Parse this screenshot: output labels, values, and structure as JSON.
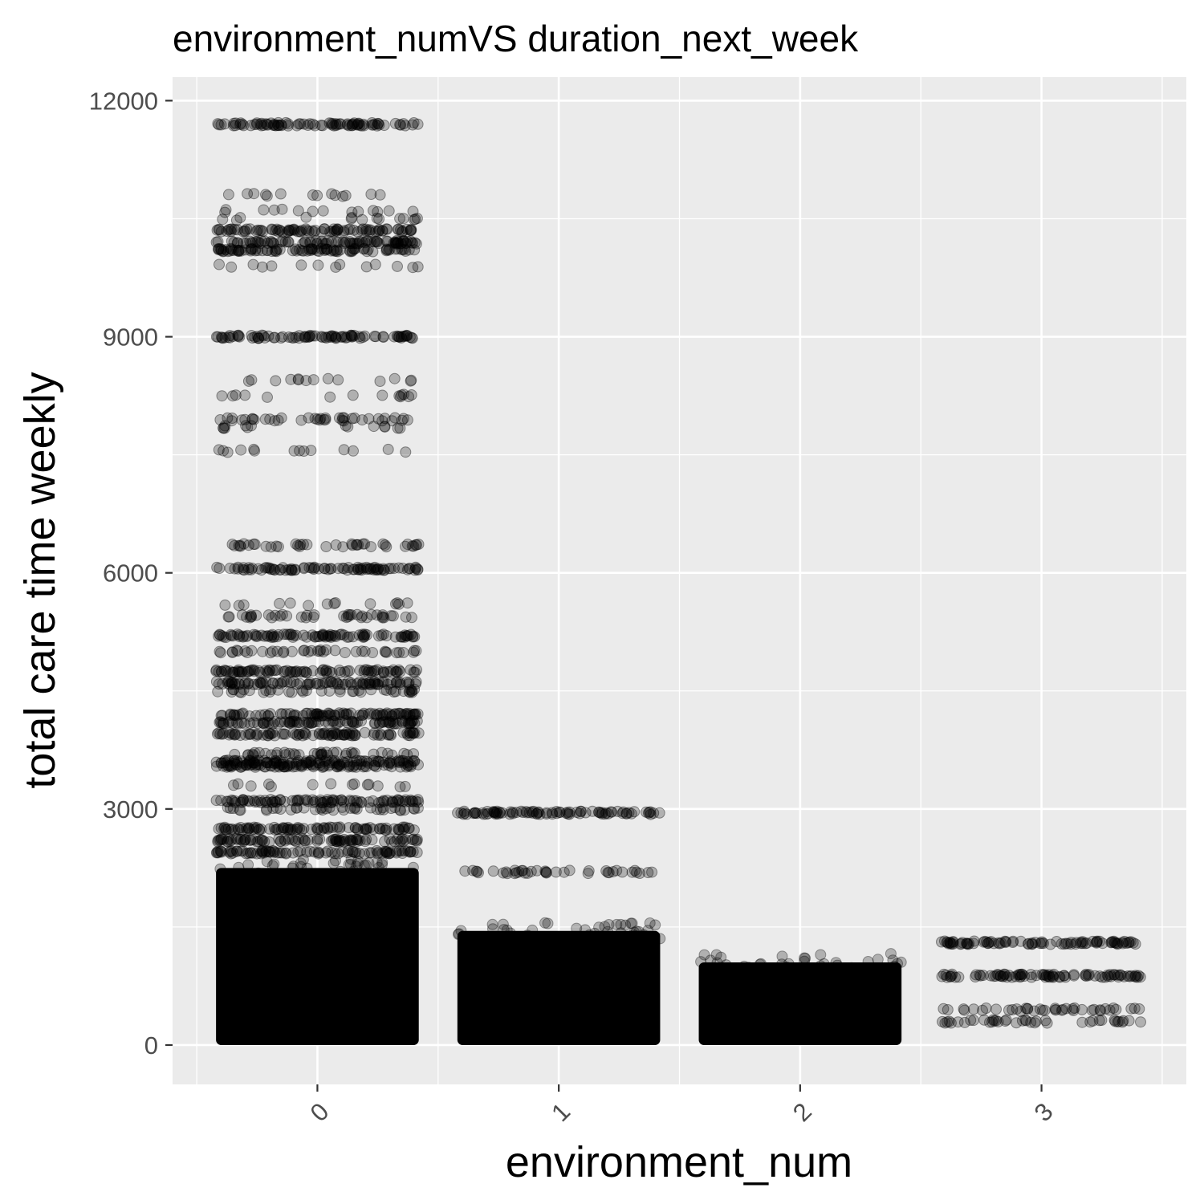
{
  "chart_data": {
    "type": "scatter",
    "title": "environment_numVS duration_next_week",
    "xlabel": "environment_num",
    "ylabel": "total care time weekly",
    "categories": [
      "0",
      "1",
      "2",
      "3"
    ],
    "x_tick_labels": [
      "0",
      "1",
      "2",
      "3"
    ],
    "y_tick_labels": [
      "0",
      "3000",
      "6000",
      "9000",
      "12000"
    ],
    "y_ticks": [
      0,
      3000,
      6000,
      9000,
      12000
    ],
    "ylim": [
      -500,
      12300
    ],
    "xlim": [
      -0.6,
      3.6
    ],
    "grid": true,
    "jitter_width": 0.42,
    "point_color": "#000000",
    "point_alpha": 0.25,
    "panel_background": "#ebebeb",
    "grid_color": "#ffffff",
    "groups": [
      {
        "x": "0",
        "dense_range": [
          0,
          2250
        ],
        "levels": [
          {
            "y": 11700,
            "density": "dense"
          },
          {
            "y": 10800,
            "density": "sparse"
          },
          {
            "y": 10600,
            "density": "sparse"
          },
          {
            "y": 10500,
            "density": "sparse"
          },
          {
            "y": 10350,
            "density": "dense"
          },
          {
            "y": 10200,
            "density": "dense"
          },
          {
            "y": 10100,
            "density": "dense"
          },
          {
            "y": 9900,
            "density": "sparse"
          },
          {
            "y": 9000,
            "density": "dense"
          },
          {
            "y": 8450,
            "density": "sparse"
          },
          {
            "y": 8250,
            "density": "sparse"
          },
          {
            "y": 7950,
            "density": "medium"
          },
          {
            "y": 7850,
            "density": "sparse"
          },
          {
            "y": 7550,
            "density": "sparse"
          },
          {
            "y": 6350,
            "density": "medium"
          },
          {
            "y": 6050,
            "density": "dense"
          },
          {
            "y": 5600,
            "density": "sparse"
          },
          {
            "y": 5450,
            "density": "medium"
          },
          {
            "y": 5200,
            "density": "dense"
          },
          {
            "y": 5000,
            "density": "medium"
          },
          {
            "y": 4750,
            "density": "dense"
          },
          {
            "y": 4600,
            "density": "dense"
          },
          {
            "y": 4500,
            "density": "medium"
          },
          {
            "y": 4200,
            "density": "dense"
          },
          {
            "y": 4100,
            "density": "dense"
          },
          {
            "y": 3950,
            "density": "dense"
          },
          {
            "y": 3700,
            "density": "medium"
          },
          {
            "y": 3600,
            "density": "dense"
          },
          {
            "y": 3550,
            "density": "dense"
          },
          {
            "y": 3300,
            "density": "sparse"
          },
          {
            "y": 3100,
            "density": "dense"
          },
          {
            "y": 3000,
            "density": "medium"
          },
          {
            "y": 2750,
            "density": "dense"
          },
          {
            "y": 2600,
            "density": "dense"
          },
          {
            "y": 2450,
            "density": "dense"
          }
        ]
      },
      {
        "x": "1",
        "dense_range": [
          0,
          1450
        ],
        "levels": [
          {
            "y": 2950,
            "density": "dense"
          },
          {
            "y": 2200,
            "density": "medium"
          }
        ]
      },
      {
        "x": "2",
        "dense_range": [
          0,
          1050
        ],
        "levels": []
      },
      {
        "x": "3",
        "dense_range": null,
        "levels": [
          {
            "y": 1300,
            "density": "dense"
          },
          {
            "y": 880,
            "density": "dense"
          },
          {
            "y": 450,
            "density": "medium"
          },
          {
            "y": 300,
            "density": "medium"
          }
        ]
      }
    ]
  }
}
